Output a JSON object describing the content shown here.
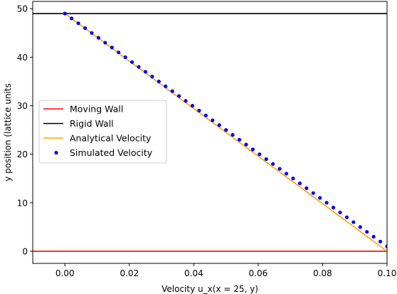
{
  "chart_data": {
    "type": "line",
    "title": "",
    "xlabel": "Velocity u_x(x = 25, y)",
    "ylabel": "y position (lattice units",
    "xlim": [
      -0.01,
      0.1
    ],
    "ylim": [
      -2.5,
      51.5
    ],
    "xticks": [
      0.0,
      0.02,
      0.04,
      0.06,
      0.08,
      0.1
    ],
    "xtick_labels": [
      "0.00",
      "0.02",
      "0.04",
      "0.06",
      "0.08",
      "0.10"
    ],
    "yticks": [
      0,
      10,
      20,
      30,
      40,
      50
    ],
    "ytick_labels": [
      "0",
      "10",
      "20",
      "30",
      "40",
      "50"
    ],
    "grid": false,
    "legend_position": "center-left",
    "series": [
      {
        "name": "Moving Wall",
        "kind": "hline",
        "y": 0,
        "color": "#ff0000"
      },
      {
        "name": "Rigid Wall",
        "kind": "hline",
        "y": 49,
        "color": "#000000"
      },
      {
        "name": "Analytical Velocity",
        "kind": "line",
        "color": "#ffa500",
        "x": [
          0.0,
          0.1
        ],
        "y": [
          49,
          0
        ]
      },
      {
        "name": "Simulated Velocity",
        "kind": "scatter",
        "color": "#0000ff",
        "x": [
          0.0,
          0.002083,
          0.004167,
          0.00625,
          0.008333,
          0.010417,
          0.0125,
          0.014583,
          0.016667,
          0.01875,
          0.020833,
          0.022917,
          0.025,
          0.027083,
          0.029167,
          0.03125,
          0.033333,
          0.035417,
          0.0375,
          0.039583,
          0.041667,
          0.04375,
          0.045833,
          0.047917,
          0.05,
          0.052083,
          0.054167,
          0.05625,
          0.058333,
          0.060417,
          0.0625,
          0.064583,
          0.066667,
          0.06875,
          0.070833,
          0.072917,
          0.075,
          0.077083,
          0.079167,
          0.08125,
          0.083333,
          0.085417,
          0.0875,
          0.089583,
          0.091667,
          0.09375,
          0.095833,
          0.097917,
          0.1
        ],
        "y": [
          49,
          48,
          47,
          46,
          45,
          44,
          43,
          42,
          41,
          40,
          39,
          38,
          37,
          36,
          35,
          34,
          33,
          32,
          31,
          30,
          29,
          28,
          27,
          26,
          25,
          24,
          23,
          22,
          21,
          20,
          19,
          18,
          17,
          16,
          15,
          14,
          13,
          12,
          11,
          10,
          9,
          8,
          7,
          6,
          5,
          4,
          3,
          2,
          1
        ]
      }
    ]
  }
}
